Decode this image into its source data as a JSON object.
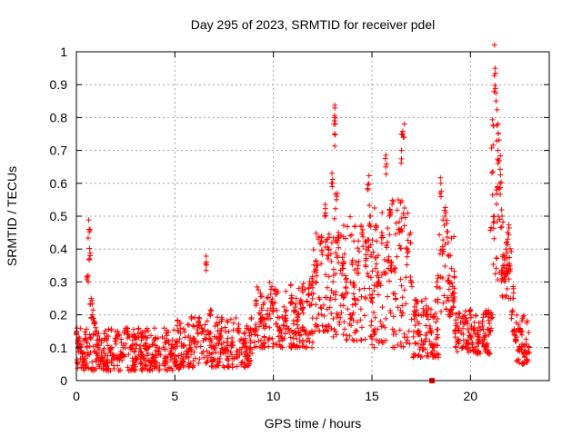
{
  "chart_data": {
    "type": "scatter",
    "title": "Day 295 of 2023, SRMTID for receiver pdel",
    "xlabel": "GPS time / hours",
    "ylabel": "SRMTID / TECUs",
    "xlim": [
      0,
      24
    ],
    "ylim": [
      0,
      1
    ],
    "x_ticks": [
      0,
      5,
      10,
      15,
      20
    ],
    "x_tick_labels": [
      "0",
      "5",
      "10",
      "15",
      "20"
    ],
    "y_ticks": [
      0,
      0.1,
      0.2,
      0.3,
      0.4,
      0.5,
      0.6,
      0.7,
      0.8,
      0.9,
      1
    ],
    "y_tick_labels": [
      "0",
      "0.1",
      "0.2",
      "0.3",
      "0.4",
      "0.5",
      "0.6",
      "0.7",
      "0.8",
      "0.9",
      "1"
    ],
    "grid": true,
    "marker": "+",
    "color": "#ff0000",
    "series": [
      {
        "name": "SRMTID",
        "x": [
          0.0,
          0.1,
          0.2,
          0.3,
          0.4,
          0.5,
          0.6,
          0.65,
          0.7,
          0.75,
          0.8,
          0.9,
          1.0,
          1.1,
          1.3,
          1.5,
          1.7,
          2.0,
          2.3,
          2.6,
          2.8,
          3.0,
          3.3,
          3.6,
          3.9,
          4.2,
          4.5,
          4.8,
          5.0,
          5.2,
          5.4,
          5.6,
          5.8,
          6.0,
          6.2,
          6.4,
          6.6,
          6.8,
          7.0,
          7.3,
          7.6,
          7.9,
          8.2,
          8.5,
          8.8,
          9.1,
          9.4,
          9.7,
          10.0,
          10.3,
          10.6,
          10.9,
          11.2,
          11.5,
          11.8,
          12.0,
          12.2,
          12.4,
          12.6,
          12.8,
          13.0,
          13.1,
          13.15,
          13.2,
          13.3,
          13.5,
          13.7,
          13.9,
          14.1,
          14.3,
          14.5,
          14.7,
          14.8,
          14.9,
          15.0,
          15.1,
          15.3,
          15.5,
          15.7,
          15.9,
          16.0,
          16.2,
          16.4,
          16.5,
          16.6,
          16.8,
          17.0,
          17.2,
          17.4,
          17.6,
          17.8,
          18.0,
          18.1,
          18.3,
          18.5,
          18.6,
          18.7,
          18.9,
          19.0,
          19.2,
          19.4,
          19.6,
          19.8,
          20.0,
          20.2,
          20.4,
          20.6,
          20.8,
          21.0,
          21.1,
          21.2,
          21.25,
          21.3,
          21.4,
          21.5,
          21.6,
          21.7,
          21.8,
          21.9,
          22.0,
          22.1,
          22.2,
          22.3,
          22.5,
          22.7,
          22.9
        ],
        "y": [
          0.15,
          0.12,
          0.1,
          0.08,
          0.06,
          0.12,
          0.3,
          0.46,
          0.38,
          0.25,
          0.2,
          0.18,
          0.15,
          0.1,
          0.07,
          0.05,
          0.09,
          0.12,
          0.08,
          0.15,
          0.1,
          0.13,
          0.08,
          0.1,
          0.07,
          0.09,
          0.06,
          0.08,
          0.05,
          0.04,
          0.06,
          0.08,
          0.1,
          0.12,
          0.18,
          0.15,
          0.36,
          0.2,
          0.1,
          0.13,
          0.09,
          0.11,
          0.15,
          0.12,
          0.1,
          0.15,
          0.18,
          0.2,
          0.22,
          0.15,
          0.19,
          0.25,
          0.18,
          0.22,
          0.28,
          0.3,
          0.35,
          0.42,
          0.5,
          0.4,
          0.6,
          0.75,
          0.78,
          0.55,
          0.45,
          0.35,
          0.3,
          0.2,
          0.25,
          0.35,
          0.45,
          0.4,
          0.58,
          0.5,
          0.25,
          0.15,
          0.3,
          0.45,
          0.65,
          0.5,
          0.35,
          0.25,
          0.45,
          0.7,
          0.74,
          0.4,
          0.3,
          0.2,
          0.15,
          0.1,
          0.2,
          0.15,
          0.1,
          0.3,
          0.6,
          0.4,
          0.5,
          0.3,
          0.2,
          0.15,
          0.12,
          0.1,
          0.18,
          0.2,
          0.16,
          0.14,
          0.12,
          0.1,
          0.15,
          0.2,
          0.5,
          0.95,
          0.85,
          0.7,
          0.6,
          0.5,
          0.35,
          0.4,
          0.45,
          0.35,
          0.2,
          0.15,
          0.12,
          0.1,
          0.08,
          0.06
        ],
        "bands": [
          {
            "x": [
              0,
              5
            ],
            "lo": 0.03,
            "hi": 0.16
          },
          {
            "x": [
              5,
              9
            ],
            "lo": 0.04,
            "hi": 0.2
          },
          {
            "x": [
              9,
              12
            ],
            "lo": 0.1,
            "hi": 0.3
          },
          {
            "x": [
              12,
              13
            ],
            "lo": 0.15,
            "hi": 0.45
          },
          {
            "x": [
              13,
              15
            ],
            "lo": 0.12,
            "hi": 0.5
          },
          {
            "x": [
              15,
              17
            ],
            "lo": 0.1,
            "hi": 0.55
          },
          {
            "x": [
              17,
              18.4
            ],
            "lo": 0.07,
            "hi": 0.25
          },
          {
            "x": [
              18.4,
              19.2
            ],
            "lo": 0.2,
            "hi": 0.5
          },
          {
            "x": [
              19.2,
              21
            ],
            "lo": 0.08,
            "hi": 0.22
          },
          {
            "x": [
              21,
              21.6
            ],
            "lo": 0.3,
            "hi": 0.8
          },
          {
            "x": [
              21.6,
              22.2
            ],
            "lo": 0.25,
            "hi": 0.45
          },
          {
            "x": [
              22.2,
              23
            ],
            "lo": 0.05,
            "hi": 0.2
          }
        ]
      }
    ],
    "outliers": [
      {
        "x": 18.05,
        "y": 0.0
      }
    ]
  }
}
